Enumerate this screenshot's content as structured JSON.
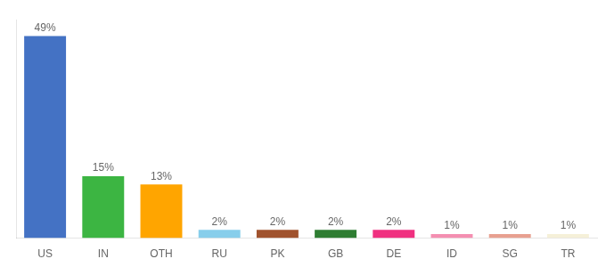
{
  "chart_data": {
    "type": "bar",
    "categories": [
      "US",
      "IN",
      "OTH",
      "RU",
      "PK",
      "GB",
      "DE",
      "ID",
      "SG",
      "TR"
    ],
    "values": [
      49,
      15,
      13,
      2,
      2,
      2,
      2,
      1,
      1,
      1
    ],
    "value_labels": [
      "49%",
      "15%",
      "13%",
      "2%",
      "2%",
      "2%",
      "2%",
      "1%",
      "1%",
      "1%"
    ],
    "colors": [
      "#4472C4",
      "#3CB542",
      "#FFA500",
      "#87CEEB",
      "#A0522D",
      "#2E7D32",
      "#F03080",
      "#F48FB1",
      "#E8A090",
      "#F5F0D8"
    ],
    "ylim": [
      0,
      53
    ],
    "grid": false,
    "data_labels": true,
    "tick_labels": "x"
  }
}
